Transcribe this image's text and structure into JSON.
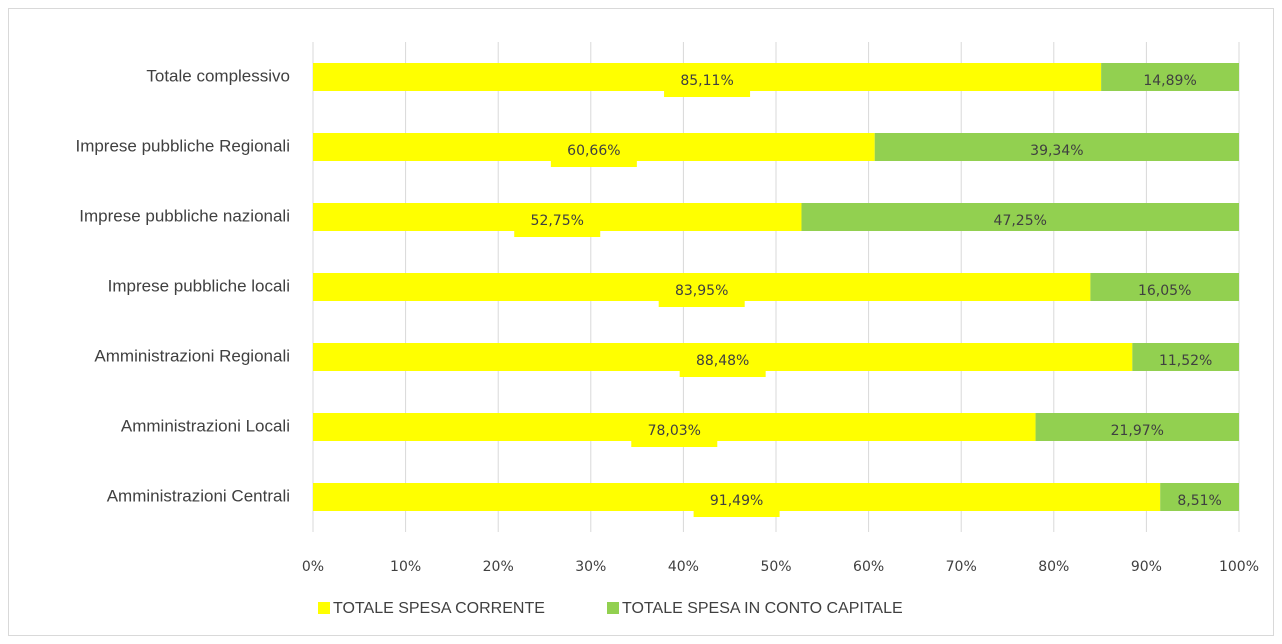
{
  "chart_data": {
    "type": "stacked-bar-horizontal",
    "categories": [
      "Totale complessivo",
      "Imprese pubbliche Regionali",
      "Imprese pubbliche nazionali",
      "Imprese pubbliche locali",
      "Amministrazioni Regionali",
      "Amministrazioni Locali",
      "Amministrazioni Centrali"
    ],
    "series": [
      {
        "name": "TOTALE SPESA CORRENTE",
        "color": "#ffff00",
        "values": [
          85.11,
          60.66,
          52.75,
          83.95,
          88.48,
          78.03,
          91.49
        ],
        "value_labels": [
          "85,11%",
          "60,66%",
          "52,75%",
          "83,95%",
          "88,48%",
          "78,03%",
          "91,49%"
        ]
      },
      {
        "name": "TOTALE SPESA IN CONTO CAPITALE",
        "color": "#92d050",
        "values": [
          14.89,
          39.34,
          47.25,
          16.05,
          11.52,
          21.97,
          8.51
        ],
        "value_labels": [
          "14,89%",
          "39,34%",
          "47,25%",
          "16,05%",
          "11,52%",
          "21,97%",
          "8,51%"
        ]
      }
    ],
    "xlim": [
      0,
      100
    ],
    "xticks": [
      {
        "value": 0,
        "label": "0%"
      },
      {
        "value": 10,
        "label": "10%"
      },
      {
        "value": 20,
        "label": "20%"
      },
      {
        "value": 30,
        "label": "30%"
      },
      {
        "value": 40,
        "label": "40%"
      },
      {
        "value": 50,
        "label": "50%"
      },
      {
        "value": 60,
        "label": "60%"
      },
      {
        "value": 70,
        "label": "70%"
      },
      {
        "value": 80,
        "label": "80%"
      },
      {
        "value": 90,
        "label": "90%"
      },
      {
        "value": 100,
        "label": "100%"
      }
    ],
    "grid": true,
    "legend": "bottom"
  }
}
